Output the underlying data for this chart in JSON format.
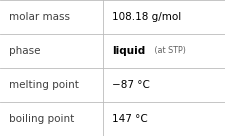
{
  "rows": [
    {
      "label": "molar mass",
      "value": "108.18 g/mol",
      "value_bold": false,
      "value_suffix": ""
    },
    {
      "label": "phase",
      "value": "liquid",
      "value_suffix": " (at STP)",
      "value_bold": true
    },
    {
      "label": "melting point",
      "value": "−87 °C",
      "value_bold": false,
      "value_suffix": ""
    },
    {
      "label": "boiling point",
      "value": "147 °C",
      "value_bold": false,
      "value_suffix": ""
    }
  ],
  "bg_color": "#ffffff",
  "border_color": "#bbbbbb",
  "label_color": "#404040",
  "value_color": "#000000",
  "suffix_color": "#606060",
  "label_fontsize": 7.5,
  "value_fontsize": 7.5,
  "suffix_fontsize": 5.8,
  "col_split": 0.455,
  "fig_width": 2.26,
  "fig_height": 1.36,
  "dpi": 100
}
